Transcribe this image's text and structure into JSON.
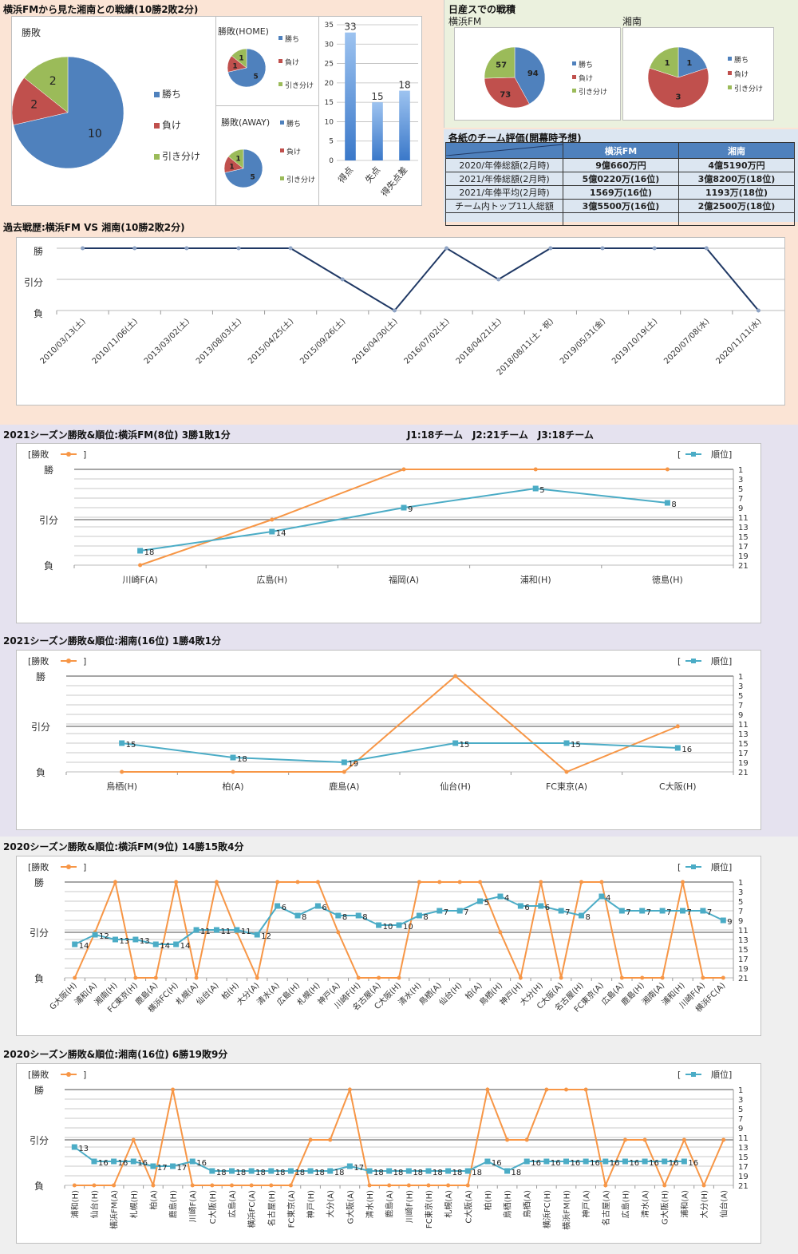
{
  "colors": {
    "win": "#4f81bd",
    "loss": "#c0504d",
    "draw": "#9bbb59",
    "result_line": "#f79646",
    "rank_line": "#4bacc6",
    "history_line": "#1f3864",
    "table_header": "#4f81bd"
  },
  "section_top": {
    "title": "横浜FMから見た湘南との戦績(10勝2敗2分)",
    "legend_labels": [
      "勝ち",
      "負け",
      "引き分け"
    ]
  },
  "nissan": {
    "title": "日産スでの戦積",
    "yokohama_label": "横浜FM",
    "shonan_label": "湘南"
  },
  "eval_table": {
    "title": "各紙のチーム評価(開幕時予想)",
    "headers": [
      "",
      "横浜FM",
      "湘南"
    ],
    "rows": [
      [
        "2020/年俸総額(2月時)",
        "9億660万円",
        "4億5190万円"
      ],
      [
        "2021/年俸総額(2月時)",
        "5億0220万(16位)",
        "3億8200万(18位)"
      ],
      [
        "2021/年俸平均(2月時)",
        "1569万(16位)",
        "1193万(18位)"
      ],
      [
        "チーム内トップ11人総額",
        "3億5500万(16位)",
        "2億2500万(18位)"
      ],
      [
        "",
        "",
        ""
      ]
    ]
  },
  "history": {
    "title": "過去戦歴:横浜FM VS 湘南(10勝2敗2分)"
  },
  "s2021": {
    "yokohama_title": "2021シーズン勝敗&順位:横浜FM(8位) 3勝1敗1分",
    "teams_note": "J1:18チーム　J2:21チーム　J3:18チーム",
    "shonan_title": "2021シーズン勝敗&順位:湘南(16位) 1勝4敗1分"
  },
  "s2020": {
    "yokohama_title": "2020シーズン勝敗&順位:横浜FM(9位) 14勝15敗4分",
    "shonan_title": "2020シーズン勝敗&順位:湘南(16位) 6勝19敗9分"
  },
  "legend": {
    "result": "[勝敗",
    "result_close": "]",
    "rank_open": "[",
    "rank": "順位]"
  },
  "result_axis": [
    "勝",
    "引分",
    "負"
  ],
  "chart_data": [
    {
      "id": "pie_total",
      "type": "pie",
      "title": "勝敗",
      "labels": [
        "勝ち",
        "負け",
        "引き分け"
      ],
      "values": [
        10,
        2,
        2
      ]
    },
    {
      "id": "pie_home",
      "type": "pie",
      "title": "勝敗(HOME)",
      "labels": [
        "勝ち",
        "負け",
        "引き分け"
      ],
      "values": [
        5,
        1,
        1
      ]
    },
    {
      "id": "pie_away",
      "type": "pie",
      "title": "勝敗(AWAY)",
      "labels": [
        "勝ち",
        "負け",
        "引き分け"
      ],
      "values": [
        5,
        1,
        1
      ]
    },
    {
      "id": "bar_goals",
      "type": "bar",
      "categories": [
        "得点",
        "失点",
        "得失点差"
      ],
      "values": [
        33,
        15,
        18
      ],
      "ylim": [
        0,
        35
      ],
      "yticks": [
        0,
        5,
        10,
        15,
        20,
        25,
        30,
        35
      ]
    },
    {
      "id": "pie_nissan_yokohama",
      "type": "pie",
      "title": "横浜FM",
      "labels": [
        "勝ち",
        "負け",
        "引き分け"
      ],
      "values": [
        94,
        73,
        57
      ]
    },
    {
      "id": "pie_nissan_shonan",
      "type": "pie",
      "title": "湘南",
      "labels": [
        "勝ち",
        "負け",
        "引き分け"
      ],
      "values": [
        1,
        3,
        1
      ]
    },
    {
      "id": "history",
      "type": "line",
      "title": "過去戦歴:横浜FM VS 湘南(10勝2敗2分)",
      "categories": [
        "2010/03/13(土)",
        "2010/11/06(土)",
        "2013/03/02(土)",
        "2013/08/03(土)",
        "2015/04/25(土)",
        "2015/09/26(土)",
        "2016/04/30(土)",
        "2016/07/02(土)",
        "2018/04/21(土)",
        "2018/08/11(土・祝)",
        "2019/05/31(金)",
        "2019/10/19(土)",
        "2020/07/08(水)",
        "2020/11/11(水)"
      ],
      "results": [
        "W",
        "W",
        "W",
        "W",
        "W",
        "D",
        "L",
        "W",
        "D",
        "W",
        "W",
        "W",
        "W",
        "L"
      ],
      "yticks": [
        "勝",
        "引分",
        "負"
      ]
    },
    {
      "id": "y2021",
      "type": "line",
      "title": "2021シーズン勝敗&順位:横浜FM(8位) 3勝1敗1分",
      "max_rank": 21,
      "categories": [
        "川崎F(A)",
        "広島(H)",
        "福岡(A)",
        "浦和(H)",
        "徳島(H)"
      ],
      "series": [
        {
          "name": "勝敗",
          "results": [
            "L",
            "D",
            "W",
            "W",
            "W"
          ]
        },
        {
          "name": "順位",
          "values": [
            18,
            14,
            9,
            5,
            8
          ]
        }
      ]
    },
    {
      "id": "s2021",
      "type": "line",
      "title": "2021シーズン勝敗&順位:湘南(16位) 1勝4敗1分",
      "max_rank": 21,
      "categories": [
        "鳥栖(H)",
        "柏(A)",
        "鹿島(A)",
        "仙台(H)",
        "FC東京(A)",
        "C大阪(H)"
      ],
      "series": [
        {
          "name": "勝敗",
          "results": [
            "L",
            "L",
            "L",
            "W",
            "L",
            "D"
          ]
        },
        {
          "name": "順位",
          "values": [
            15,
            18,
            19,
            15,
            15,
            16
          ]
        }
      ]
    },
    {
      "id": "y2020",
      "type": "line",
      "title": "2020シーズン勝敗&順位:横浜FM(9位) 14勝15敗4分",
      "max_rank": 21,
      "categories": [
        "G大阪(H)",
        "浦和(A)",
        "湘南(H)",
        "FC東京(H)",
        "鹿島(A)",
        "横浜FC(H)",
        "札幌(A)",
        "仙台(A)",
        "柏(H)",
        "大分(A)",
        "清水(A)",
        "広島(H)",
        "札幌(H)",
        "神戸(A)",
        "川崎F(H)",
        "名古屋(A)",
        "C大阪(H)",
        "清水(H)",
        "鳥栖(A)",
        "仙台(H)",
        "柏(A)",
        "鳥栖(H)",
        "神戸(H)",
        "大分(H)",
        "C大阪(A)",
        "名古屋(H)",
        "FC東京(A)",
        "広島(A)",
        "鹿島(H)",
        "湘南(A)",
        "浦和(H)",
        "川崎F(A)",
        "横浜FC(A)"
      ],
      "series": [
        {
          "name": "勝敗",
          "results": [
            "L",
            "D",
            "W",
            "L",
            "L",
            "W",
            "L",
            "W",
            "D",
            "L",
            "W",
            "W",
            "W",
            "D",
            "L",
            "L",
            "L",
            "W",
            "W",
            "W",
            "W",
            "D",
            "L",
            "W",
            "L",
            "W",
            "W",
            "L",
            "L",
            "L",
            "W",
            "L",
            "L"
          ]
        },
        {
          "name": "順位",
          "values": [
            14,
            12,
            13,
            13,
            14,
            14,
            11,
            11,
            11,
            12,
            6,
            8,
            6,
            8,
            8,
            10,
            10,
            8,
            7,
            7,
            5,
            4,
            6,
            6,
            7,
            8,
            4,
            7,
            7,
            7,
            7,
            7,
            9
          ]
        }
      ]
    },
    {
      "id": "s2020",
      "type": "line",
      "title": "2020シーズン勝敗&順位:湘南(16位) 6勝19敗9分",
      "max_rank": 21,
      "categories": [
        "浦和(H)",
        "仙台(H)",
        "横浜FM(A)",
        "札幌(H)",
        "柏(A)",
        "鹿島(H)",
        "川崎F(A)",
        "C大阪(H)",
        "広島(A)",
        "横浜FC(A)",
        "名古屋(H)",
        "FC東京(A)",
        "神戸(H)",
        "大分(A)",
        "G大阪(A)",
        "清水(H)",
        "鹿島(A)",
        "川崎F(H)",
        "FC東京(H)",
        "札幌(A)",
        "C大阪(A)",
        "柏(H)",
        "鳥栖(H)",
        "鳥栖(A)",
        "横浜FC(H)",
        "横浜FM(H)",
        "神戸(A)",
        "名古屋(A)",
        "広島(H)",
        "清水(A)",
        "G大阪(H)",
        "浦和(A)",
        "大分(H)",
        "仙台(A)"
      ],
      "series": [
        {
          "name": "勝敗",
          "results": [
            "L",
            "L",
            "L",
            "D",
            "L",
            "W",
            "L",
            "L",
            "L",
            "L",
            "L",
            "L",
            "D",
            "D",
            "W",
            "L",
            "L",
            "L",
            "L",
            "L",
            "L",
            "W",
            "D",
            "D",
            "W",
            "W",
            "W",
            "L",
            "D",
            "D",
            "L",
            "D",
            "L",
            "D"
          ]
        },
        {
          "name": "順位",
          "values": [
            13,
            16,
            16,
            16,
            17,
            17,
            16,
            18,
            18,
            18,
            18,
            18,
            18,
            18,
            17,
            18,
            18,
            18,
            18,
            18,
            18,
            16,
            18,
            16,
            16,
            16,
            16,
            16,
            16,
            16,
            16,
            16,
            null,
            null
          ]
        }
      ]
    }
  ]
}
